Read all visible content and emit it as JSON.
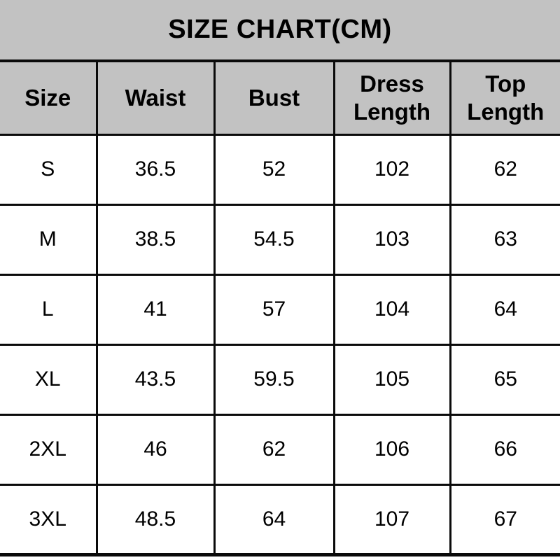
{
  "colors": {
    "header_bg": "#c2c2c2",
    "cell_bg": "#ffffff",
    "border_color": "#0a0a0a",
    "text_color": "#000000"
  },
  "chart_data": {
    "type": "table",
    "title": "SIZE CHART(CM)",
    "columns": [
      "Size",
      "Waist",
      "Bust",
      "Dress Length",
      "Top Length"
    ],
    "rows": [
      [
        "S",
        "36.5",
        "52",
        "102",
        "62"
      ],
      [
        "M",
        "38.5",
        "54.5",
        "103",
        "63"
      ],
      [
        "L",
        "41",
        "57",
        "104",
        "64"
      ],
      [
        "XL",
        "43.5",
        "59.5",
        "105",
        "65"
      ],
      [
        "2XL",
        "46",
        "62",
        "106",
        "66"
      ],
      [
        "3XL",
        "48.5",
        "64",
        "107",
        "67"
      ]
    ]
  }
}
